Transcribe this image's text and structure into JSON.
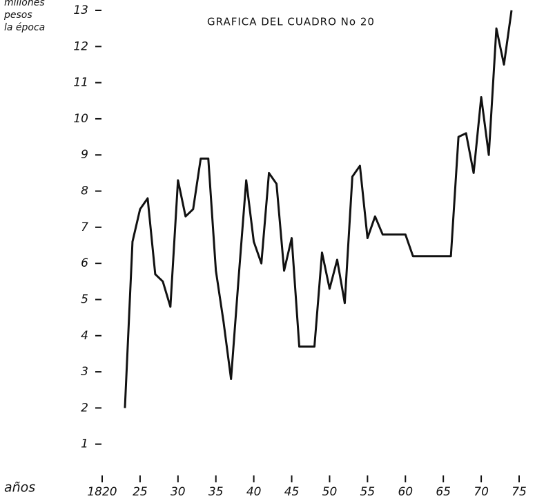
{
  "chart_data": {
    "type": "line",
    "title": "GRAFICA DEL CUADRO No 20",
    "ylabel_lines": [
      "millones",
      "pesos",
      "la época"
    ],
    "xlabel": "años",
    "x": [
      1823,
      1824,
      1825,
      1826,
      1827,
      1828,
      1829,
      1830,
      1831,
      1832,
      1833,
      1834,
      1835,
      1836,
      1837,
      1838,
      1839,
      1840,
      1841,
      1842,
      1843,
      1844,
      1845,
      1846,
      1847,
      1848,
      1849,
      1850,
      1851,
      1852,
      1853,
      1854,
      1855,
      1856,
      1857,
      1858,
      1859,
      1860,
      1861,
      1862,
      1863,
      1864,
      1865,
      1866,
      1867,
      1868,
      1869,
      1870,
      1871,
      1872,
      1873,
      1874
    ],
    "series": [
      {
        "color": "#111111",
        "values": [
          2.0,
          6.6,
          7.5,
          7.8,
          5.7,
          5.5,
          4.8,
          8.3,
          7.3,
          7.5,
          8.9,
          8.9,
          5.8,
          4.4,
          2.8,
          5.6,
          8.3,
          6.6,
          6.0,
          8.5,
          8.2,
          5.8,
          6.7,
          3.7,
          3.7,
          3.7,
          6.3,
          5.3,
          6.1,
          4.9,
          8.4,
          8.7,
          6.7,
          7.3,
          6.8,
          6.8,
          6.8,
          6.8,
          6.2,
          6.2,
          6.2,
          6.2,
          6.2,
          6.2,
          9.5,
          9.6,
          8.5,
          10.6,
          9.0,
          12.5,
          11.5,
          13.0
        ]
      }
    ],
    "xlim": [
      1820,
      1875
    ],
    "xticks": [
      1820,
      {
        "value": 1825,
        "label": "25"
      },
      {
        "value": 1830,
        "label": "30"
      },
      {
        "value": 1835,
        "label": "35"
      },
      {
        "value": 1840,
        "label": "40"
      },
      {
        "value": 1845,
        "label": "45"
      },
      {
        "value": 1850,
        "label": "50"
      },
      {
        "value": 1855,
        "label": "55"
      },
      {
        "value": 1860,
        "label": "60"
      },
      {
        "value": 1865,
        "label": "65"
      },
      {
        "value": 1870,
        "label": "70"
      },
      {
        "value": 1875,
        "label": "75"
      }
    ],
    "ylim": [
      0,
      13
    ],
    "yticks": [
      1,
      2,
      3,
      4,
      5,
      6,
      7,
      8,
      9,
      10,
      11,
      12,
      13
    ],
    "grid": false
  }
}
